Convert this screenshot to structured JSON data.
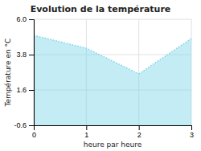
{
  "chart_data": {
    "type": "area",
    "title": "Evolution de la température",
    "xlabel": "heure par heure",
    "ylabel": "Température en °C",
    "x": [
      0,
      1,
      2,
      3
    ],
    "y": [
      5.0,
      4.2,
      2.6,
      4.8
    ],
    "xlim": [
      0,
      3
    ],
    "ylim": [
      -0.6,
      6.0
    ],
    "xticks": [
      0,
      1,
      2,
      3
    ],
    "yticks": [
      -0.6,
      1.6,
      3.8,
      {
        "value": 6.0,
        "label": "6.0"
      }
    ],
    "color": "#7dd4e8",
    "line_style": "dotted",
    "grid": true
  }
}
